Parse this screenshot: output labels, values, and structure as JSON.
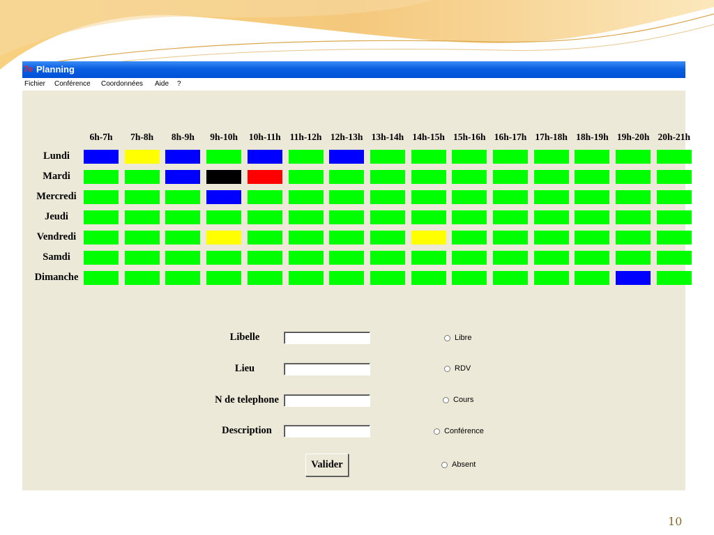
{
  "window": {
    "title": "Planning",
    "icon": "app-icon"
  },
  "menu": [
    "Fichier",
    "Conférence",
    "Coordonnées",
    "Aide",
    "?"
  ],
  "planning": {
    "hours": [
      "6h-7h",
      "7h-8h",
      "8h-9h",
      "9h-10h",
      "10h-11h",
      "11h-12h",
      "12h-13h",
      "13h-14h",
      "14h-15h",
      "15h-16h",
      "16h-17h",
      "17h-18h",
      "18h-19h",
      "19h-20h",
      "20h-21h"
    ],
    "days": [
      "Lundi",
      "Mardi",
      "Mercredi",
      "Jeudi",
      "Vendredi",
      "Samdi",
      "Dimanche"
    ],
    "colors": {
      "G": "#00ff00",
      "B": "#0000ff",
      "Y": "#ffff00",
      "K": "#000000",
      "R": "#ff0000"
    },
    "grid": [
      [
        "B",
        "Y",
        "B",
        "G",
        "B",
        "G",
        "B",
        "G",
        "G",
        "G",
        "G",
        "G",
        "G",
        "G",
        "G"
      ],
      [
        "G",
        "G",
        "B",
        "K",
        "R",
        "G",
        "G",
        "G",
        "G",
        "G",
        "G",
        "G",
        "G",
        "G",
        "G"
      ],
      [
        "G",
        "G",
        "G",
        "B",
        "G",
        "G",
        "G",
        "G",
        "G",
        "G",
        "G",
        "G",
        "G",
        "G",
        "G"
      ],
      [
        "G",
        "G",
        "G",
        "G",
        "G",
        "G",
        "G",
        "G",
        "G",
        "G",
        "G",
        "G",
        "G",
        "G",
        "G"
      ],
      [
        "G",
        "G",
        "G",
        "Y",
        "G",
        "G",
        "G",
        "G",
        "Y",
        "G",
        "G",
        "G",
        "G",
        "G",
        "G"
      ],
      [
        "G",
        "G",
        "G",
        "G",
        "G",
        "G",
        "G",
        "G",
        "G",
        "G",
        "G",
        "G",
        "G",
        "G",
        "G"
      ],
      [
        "G",
        "G",
        "G",
        "G",
        "G",
        "G",
        "G",
        "G",
        "G",
        "G",
        "G",
        "G",
        "G",
        "B",
        "G"
      ]
    ]
  },
  "form": {
    "fields": [
      {
        "label": "Libelle",
        "value": ""
      },
      {
        "label": "Lieu",
        "value": ""
      },
      {
        "label": "N de telephone",
        "value": ""
      },
      {
        "label": "Description",
        "value": ""
      }
    ],
    "options": [
      "Libre",
      "RDV",
      "Cours",
      "Conférence",
      "Absent"
    ],
    "submit_label": "Valider"
  },
  "slide_number": "10"
}
